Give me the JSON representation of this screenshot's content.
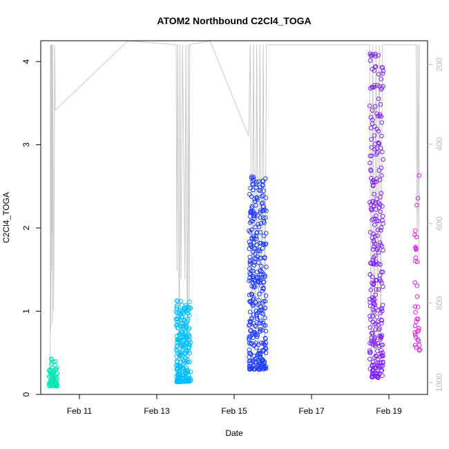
{
  "chart_data": {
    "type": "scatter",
    "title": "ATOM2 Northbound C2Cl4_TOGA",
    "xlabel": "Date",
    "ylabel": "C2Cl4_TOGA",
    "x_range": [
      "2018-02-10T00:00",
      "2018-02-20T00:00"
    ],
    "ylim": [
      0,
      4.25
    ],
    "x_ticks": [
      {
        "date": "2018-02-11T00:00",
        "label": "Feb 11"
      },
      {
        "date": "2018-02-13T00:00",
        "label": "Feb 13"
      },
      {
        "date": "2018-02-15T00:00",
        "label": "Feb 15"
      },
      {
        "date": "2018-02-17T00:00",
        "label": "Feb 17"
      },
      {
        "date": "2018-02-19T00:00",
        "label": "Feb 19"
      }
    ],
    "y_ticks": [
      0,
      1,
      2,
      3,
      4
    ],
    "right_axis": {
      "quantity": "pressure",
      "inverted": true,
      "ticks": [
        200,
        400,
        600,
        800,
        1000
      ],
      "range": [
        140,
        1030
      ],
      "color": "#bdbdbd"
    },
    "grid": false,
    "legend": "none",
    "background_line_color": "#c8c8c8",
    "pressure_profile": [
      [
        "2018-02-10T05:50",
        1000
      ],
      [
        "2018-02-10T06:00",
        150
      ],
      [
        "2018-02-10T06:10",
        870
      ],
      [
        "2018-02-10T06:20",
        150
      ],
      [
        "2018-02-10T06:30",
        620
      ],
      [
        "2018-02-10T06:40",
        150
      ],
      [
        "2018-02-10T06:50",
        720
      ],
      [
        "2018-02-10T07:00",
        150
      ],
      [
        "2018-02-10T07:10",
        850
      ],
      [
        "2018-02-10T07:20",
        150
      ],
      [
        "2018-02-10T08:00",
        820
      ],
      [
        "2018-02-10T08:40",
        150
      ],
      [
        "2018-02-10T09:00",
        315
      ],
      [
        "2018-02-12T06:00",
        140
      ],
      [
        "2018-02-13T12:00",
        150
      ],
      [
        "2018-02-13T12:30",
        720
      ],
      [
        "2018-02-13T13:00",
        150
      ],
      [
        "2018-02-13T14:00",
        1000
      ],
      [
        "2018-02-13T14:20",
        150
      ],
      [
        "2018-02-13T15:00",
        740
      ],
      [
        "2018-02-13T16:00",
        150
      ],
      [
        "2018-02-13T17:30",
        740
      ],
      [
        "2018-02-13T18:00",
        150
      ],
      [
        "2018-02-13T19:00",
        1000
      ],
      [
        "2018-02-13T19:30",
        150
      ],
      [
        "2018-02-13T20:00",
        840
      ],
      [
        "2018-02-13T20:30",
        150
      ],
      [
        "2018-02-14T09:00",
        140
      ],
      [
        "2018-02-15T09:00",
        380
      ],
      [
        "2018-02-15T10:00",
        150
      ],
      [
        "2018-02-15T11:00",
        860
      ],
      [
        "2018-02-15T12:00",
        150
      ],
      [
        "2018-02-15T13:00",
        900
      ],
      [
        "2018-02-15T14:00",
        150
      ],
      [
        "2018-02-15T15:00",
        980
      ],
      [
        "2018-02-15T16:00",
        150
      ],
      [
        "2018-02-15T17:00",
        850
      ],
      [
        "2018-02-15T18:00",
        150
      ],
      [
        "2018-02-15T19:00",
        950
      ],
      [
        "2018-02-15T20:00",
        150
      ],
      [
        "2018-02-18T12:00",
        150
      ],
      [
        "2018-02-18T13:00",
        1000
      ],
      [
        "2018-02-18T14:00",
        150
      ],
      [
        "2018-02-18T15:00",
        990
      ],
      [
        "2018-02-18T16:00",
        150
      ],
      [
        "2018-02-18T17:00",
        800
      ],
      [
        "2018-02-18T18:00",
        150
      ],
      [
        "2018-02-18T19:00",
        880
      ],
      [
        "2018-02-18T20:00",
        150
      ],
      [
        "2018-02-19T17:00",
        150
      ],
      [
        "2018-02-19T17:30",
        620
      ],
      [
        "2018-02-19T18:00",
        150
      ],
      [
        "2018-02-19T18:30",
        680
      ],
      [
        "2018-02-19T19:00",
        150
      ]
    ],
    "series": [
      {
        "color": "#00e8b4",
        "date_range": [
          "2018-02-10T05:00",
          "2018-02-10T10:30"
        ],
        "y_range": [
          0.1,
          0.43
        ],
        "count": 70,
        "seed": 11
      },
      {
        "color": "#00bfff",
        "date_range": [
          "2018-02-13T12:00",
          "2018-02-13T21:00"
        ],
        "y_range": [
          0.15,
          1.13
        ],
        "count": 240,
        "seed": 23
      },
      {
        "color": "#1f3cff",
        "date_range": [
          "2018-02-15T09:00",
          "2018-02-15T20:00"
        ],
        "y_range": [
          0.3,
          2.62
        ],
        "count": 330,
        "seed": 37
      },
      {
        "color": "#7f1fff",
        "date_range": [
          "2018-02-18T12:00",
          "2018-02-18T20:30"
        ],
        "y_range": [
          0.2,
          4.1
        ],
        "count": 280,
        "seed": 41
      },
      {
        "color": "#e01fe8",
        "date_range": [
          "2018-02-19T16:00",
          "2018-02-19T19:30"
        ],
        "y_range": [
          0.52,
          2.79
        ],
        "count": 36,
        "seed": 53
      }
    ]
  }
}
